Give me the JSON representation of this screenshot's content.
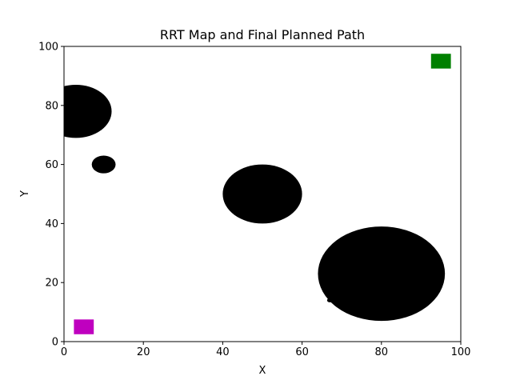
{
  "chart_data": {
    "type": "scatter",
    "title": "RRT Map and Final Planned Path",
    "xlabel": "X",
    "ylabel": "Y",
    "xlim": [
      0,
      100
    ],
    "ylim": [
      0,
      100
    ],
    "xticks": [
      0,
      20,
      40,
      60,
      80,
      100
    ],
    "yticks": [
      0,
      20,
      40,
      60,
      80,
      100
    ],
    "grid": false,
    "obstacles": [
      {
        "cx": 3,
        "cy": 78,
        "r": 9,
        "color": "#000000"
      },
      {
        "cx": 10,
        "cy": 60,
        "r": 3,
        "color": "#000000"
      },
      {
        "cx": 50,
        "cy": 50,
        "r": 10,
        "color": "#000000"
      },
      {
        "cx": 80,
        "cy": 23,
        "r": 16,
        "color": "#000000"
      },
      {
        "cx": 67,
        "cy": 14,
        "r": 0.7,
        "color": "#000000"
      }
    ],
    "markers": [
      {
        "label": "start",
        "x": 5,
        "y": 5,
        "size": 5,
        "color": "#bf00bf"
      },
      {
        "label": "goal",
        "x": 95,
        "y": 95,
        "size": 5,
        "color": "#008000"
      }
    ]
  }
}
